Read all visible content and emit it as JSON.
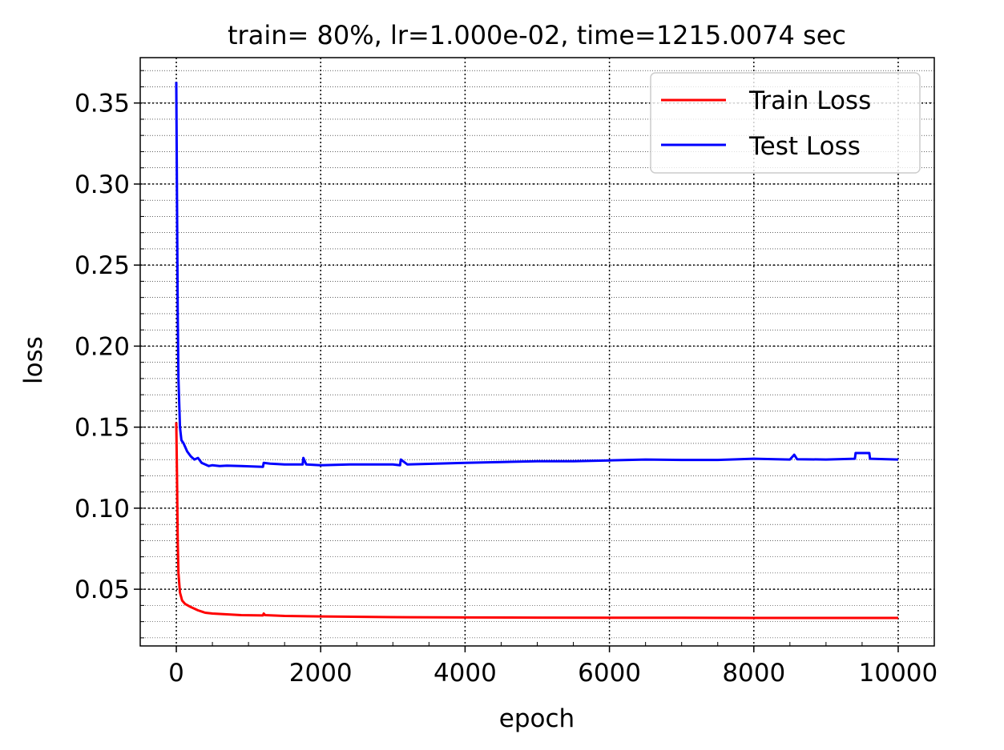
{
  "chart_data": {
    "type": "line",
    "title": "train= 80%, lr=1.000e-02, time=1215.0074 sec",
    "xlabel": "epoch",
    "ylabel": "loss",
    "xlim": [
      -500,
      10500
    ],
    "ylim": [
      0.015,
      0.378
    ],
    "xticks": [
      0,
      2000,
      4000,
      6000,
      8000,
      10000
    ],
    "xtick_labels": [
      "0",
      "2000",
      "4000",
      "6000",
      "8000",
      "10000"
    ],
    "yticks": [
      0.05,
      0.1,
      0.15,
      0.2,
      0.25,
      0.3,
      0.35
    ],
    "ytick_labels": [
      "0.05",
      "0.10",
      "0.15",
      "0.20",
      "0.25",
      "0.30",
      "0.35"
    ],
    "grid": true,
    "grid_style": "dotted, major and minor",
    "legend_position": "top-right",
    "series": [
      {
        "name": "Train Loss",
        "color": "#ff0000",
        "x": [
          0,
          10,
          20,
          30,
          50,
          80,
          120,
          200,
          300,
          400,
          500,
          700,
          900,
          1200,
          1210,
          1230,
          1500,
          2000,
          3000,
          4000,
          5000,
          6000,
          7000,
          8000,
          9000,
          10000
        ],
        "y": [
          0.153,
          0.12,
          0.08,
          0.06,
          0.048,
          0.043,
          0.041,
          0.039,
          0.037,
          0.0355,
          0.035,
          0.0345,
          0.034,
          0.0338,
          0.035,
          0.034,
          0.0335,
          0.0332,
          0.0328,
          0.0326,
          0.0325,
          0.0324,
          0.0324,
          0.0323,
          0.0323,
          0.0323
        ]
      },
      {
        "name": "Test Loss",
        "color": "#0000ff",
        "x": [
          0,
          10,
          20,
          30,
          50,
          70,
          100,
          150,
          200,
          250,
          300,
          350,
          400,
          450,
          500,
          600,
          700,
          900,
          1200,
          1210,
          1300,
          1500,
          1750,
          1760,
          1800,
          2000,
          2400,
          3000,
          3100,
          3110,
          3200,
          4000,
          4500,
          5000,
          5500,
          6000,
          6500,
          7000,
          7500,
          8000,
          8500,
          8560,
          8600,
          9000,
          9400,
          9410,
          9600,
          9610,
          10000
        ],
        "y": [
          0.363,
          0.29,
          0.22,
          0.18,
          0.15,
          0.142,
          0.14,
          0.135,
          0.132,
          0.13,
          0.131,
          0.128,
          0.127,
          0.126,
          0.1265,
          0.126,
          0.1262,
          0.126,
          0.1255,
          0.128,
          0.1275,
          0.127,
          0.127,
          0.131,
          0.127,
          0.1265,
          0.127,
          0.127,
          0.1265,
          0.13,
          0.127,
          0.128,
          0.1285,
          0.129,
          0.129,
          0.1295,
          0.13,
          0.1298,
          0.1298,
          0.1305,
          0.13,
          0.133,
          0.1302,
          0.13,
          0.1305,
          0.134,
          0.134,
          0.1305,
          0.13
        ]
      }
    ]
  }
}
